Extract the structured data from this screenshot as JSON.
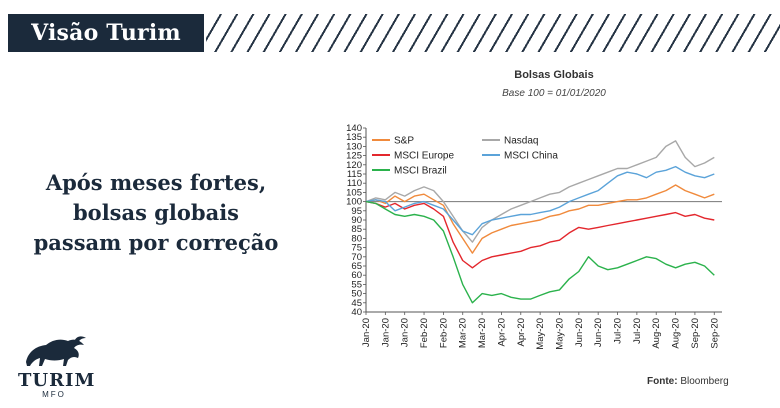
{
  "header": {
    "title": "Visão Turim"
  },
  "headline": {
    "lines": [
      "Após meses fortes,",
      "bolsas globais",
      "passam por correção"
    ]
  },
  "logo": {
    "name": "TURIM",
    "sub": "MFO",
    "icon": "bull-icon"
  },
  "source": {
    "label": "Fonte:",
    "value": "Bloomberg"
  },
  "colors": {
    "navy": "#1b2a3b",
    "sp": "#f08a3c",
    "nasdaq": "#a8a8a8",
    "europe": "#e3272d",
    "china": "#5ba3d9",
    "brazil": "#2bb24c"
  },
  "chart_data": {
    "type": "line",
    "title": "Bolsas Globais",
    "subtitle": "Base 100 = 01/01/2020",
    "ylim": [
      40,
      140
    ],
    "yticks": [
      40,
      45,
      50,
      55,
      60,
      65,
      70,
      75,
      80,
      85,
      90,
      95,
      100,
      105,
      110,
      115,
      120,
      125,
      130,
      135,
      140
    ],
    "xlim": [
      0,
      18.4
    ],
    "xticks": [
      "Jan-20",
      "Jan-20",
      "Jan-20",
      "Feb-20",
      "Feb-20",
      "Mar-20",
      "Mar-20",
      "Apr-20",
      "Apr-20",
      "May-20",
      "May-20",
      "Jun-20",
      "Jun-20",
      "Jul-20",
      "Jul-20",
      "Aug-20",
      "Aug-20",
      "Sep-20",
      "Sep-20"
    ],
    "baseline": 100,
    "legend": "top-left, inside plot",
    "series": [
      {
        "name": "S&P",
        "color": "#f08a3c",
        "x": [
          0,
          0.5,
          1,
          1.5,
          2,
          2.5,
          3,
          3.5,
          4,
          4.5,
          5,
          5.5,
          6,
          6.5,
          7,
          7.5,
          8,
          8.5,
          9,
          9.5,
          10,
          10.5,
          11,
          11.5,
          12,
          12.5,
          13,
          13.5,
          14,
          14.5,
          15,
          15.5,
          16,
          16.5,
          17,
          17.5,
          18
        ],
        "values": [
          100,
          101,
          99,
          103,
          100,
          103,
          104,
          101,
          98,
          88,
          80,
          72,
          80,
          83,
          85,
          87,
          88,
          89,
          90,
          92,
          93,
          95,
          96,
          98,
          98,
          99,
          100,
          101,
          101,
          102,
          104,
          106,
          109,
          106,
          104,
          102,
          104
        ]
      },
      {
        "name": "Nasdaq",
        "color": "#a8a8a8",
        "x": [
          0,
          0.5,
          1,
          1.5,
          2,
          2.5,
          3,
          3.5,
          4,
          4.5,
          5,
          5.5,
          6,
          6.5,
          7,
          7.5,
          8,
          8.5,
          9,
          9.5,
          10,
          10.5,
          11,
          11.5,
          12,
          12.5,
          13,
          13.5,
          14,
          14.5,
          15,
          15.5,
          16,
          16.5,
          17,
          17.5,
          18
        ],
        "values": [
          100,
          102,
          101,
          105,
          103,
          106,
          108,
          106,
          100,
          92,
          84,
          78,
          86,
          90,
          93,
          96,
          98,
          100,
          102,
          104,
          105,
          108,
          110,
          112,
          114,
          116,
          118,
          118,
          120,
          122,
          124,
          130,
          133,
          124,
          119,
          121,
          124
        ]
      },
      {
        "name": "MSCI Europe",
        "color": "#e3272d",
        "x": [
          0,
          0.5,
          1,
          1.5,
          2,
          2.5,
          3,
          3.5,
          4,
          4.5,
          5,
          5.5,
          6,
          6.5,
          7,
          7.5,
          8,
          8.5,
          9,
          9.5,
          10,
          10.5,
          11,
          11.5,
          12,
          12.5,
          13,
          13.5,
          14,
          14.5,
          15,
          15.5,
          16,
          16.5,
          17,
          17.5,
          18
        ],
        "values": [
          100,
          99,
          97,
          99,
          96,
          98,
          99,
          96,
          92,
          78,
          68,
          64,
          68,
          70,
          71,
          72,
          73,
          75,
          76,
          78,
          79,
          83,
          86,
          85,
          86,
          87,
          88,
          89,
          90,
          91,
          92,
          93,
          94,
          92,
          93,
          91,
          90
        ]
      },
      {
        "name": "MSCI China",
        "color": "#5ba3d9",
        "x": [
          0,
          0.5,
          1,
          1.5,
          2,
          2.5,
          3,
          3.5,
          4,
          4.5,
          5,
          5.5,
          6,
          6.5,
          7,
          7.5,
          8,
          8.5,
          9,
          9.5,
          10,
          10.5,
          11,
          11.5,
          12,
          12.5,
          13,
          13.5,
          14,
          14.5,
          15,
          15.5,
          16,
          16.5,
          17,
          17.5,
          18
        ],
        "values": [
          100,
          101,
          100,
          95,
          97,
          99,
          100,
          98,
          96,
          90,
          84,
          82,
          88,
          90,
          91,
          92,
          93,
          93,
          94,
          95,
          97,
          100,
          102,
          104,
          106,
          110,
          114,
          116,
          115,
          113,
          116,
          117,
          119,
          116,
          114,
          113,
          115
        ]
      },
      {
        "name": "MSCI Brazil",
        "color": "#2bb24c",
        "x": [
          0,
          0.5,
          1,
          1.5,
          2,
          2.5,
          3,
          3.5,
          4,
          4.5,
          5,
          5.5,
          6,
          6.5,
          7,
          7.5,
          8,
          8.5,
          9,
          9.5,
          10,
          10.5,
          11,
          11.5,
          12,
          12.5,
          13,
          13.5,
          14,
          14.5,
          15,
          15.5,
          16,
          16.5,
          17,
          17.5,
          18
        ],
        "values": [
          100,
          99,
          96,
          93,
          92,
          93,
          92,
          90,
          84,
          70,
          55,
          45,
          50,
          49,
          50,
          48,
          47,
          47,
          49,
          51,
          52,
          58,
          62,
          70,
          65,
          63,
          64,
          66,
          68,
          70,
          69,
          66,
          64,
          66,
          67,
          65,
          60
        ]
      }
    ]
  }
}
